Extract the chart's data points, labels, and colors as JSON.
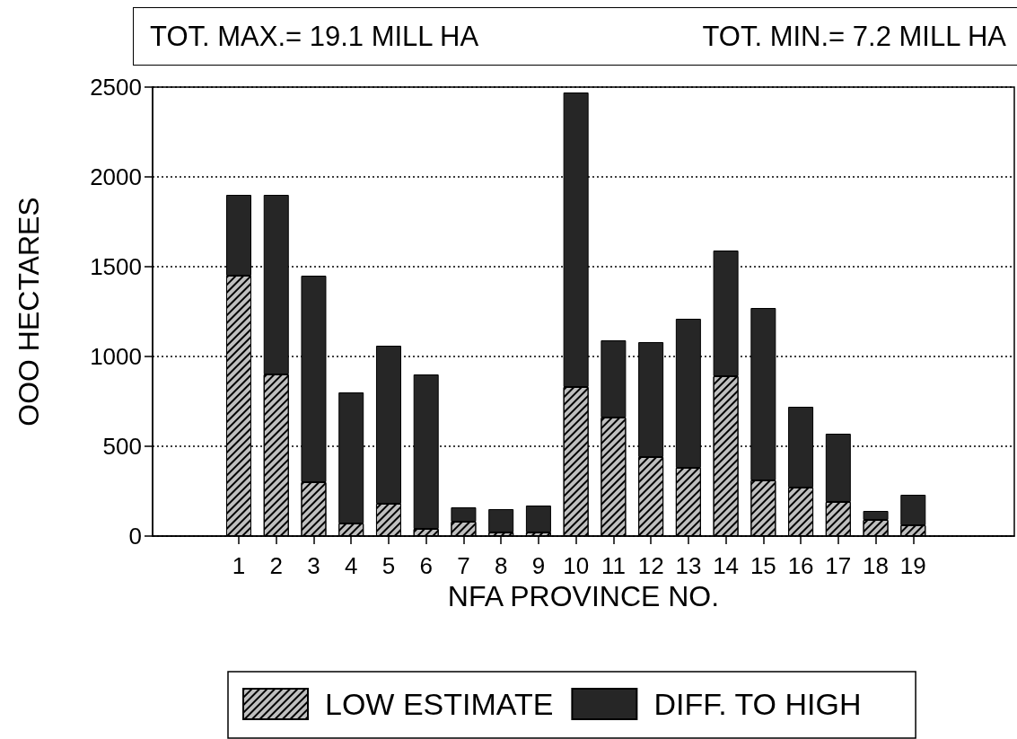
{
  "chart_data": {
    "type": "bar",
    "stacked": true,
    "x": [
      1,
      2,
      3,
      4,
      5,
      6,
      7,
      8,
      9,
      10,
      11,
      12,
      13,
      14,
      15,
      16,
      17,
      18,
      19
    ],
    "xlim": [
      -1.3,
      21.7
    ],
    "xticks": [
      1,
      2,
      3,
      4,
      5,
      6,
      7,
      8,
      9,
      10,
      11,
      12,
      13,
      14,
      15,
      16,
      17,
      18,
      19
    ],
    "xlabel": "NFA PROVINCE NO.",
    "ylabel": "OOO HECTARES",
    "ylim": [
      0,
      2500
    ],
    "yticks": [
      0,
      500,
      1000,
      1500,
      2000,
      2500
    ],
    "grid": "y",
    "legend": "bottom",
    "annotations": [
      "TOT. MAX.= 19.1 MILL HA",
      "TOT. MIN.= 7.2 MILL HA"
    ],
    "series": [
      {
        "name": "LOW ESTIMATE",
        "color": "#bfbfbf",
        "values": [
          1450,
          900,
          300,
          70,
          180,
          40,
          80,
          20,
          20,
          830,
          660,
          440,
          380,
          890,
          310,
          270,
          190,
          90,
          60
        ]
      },
      {
        "name": "DIFF. TO HIGH",
        "color": "#262626",
        "values": [
          450,
          1000,
          1150,
          730,
          880,
          860,
          80,
          130,
          150,
          1640,
          430,
          640,
          830,
          700,
          960,
          450,
          380,
          50,
          170
        ]
      }
    ]
  }
}
